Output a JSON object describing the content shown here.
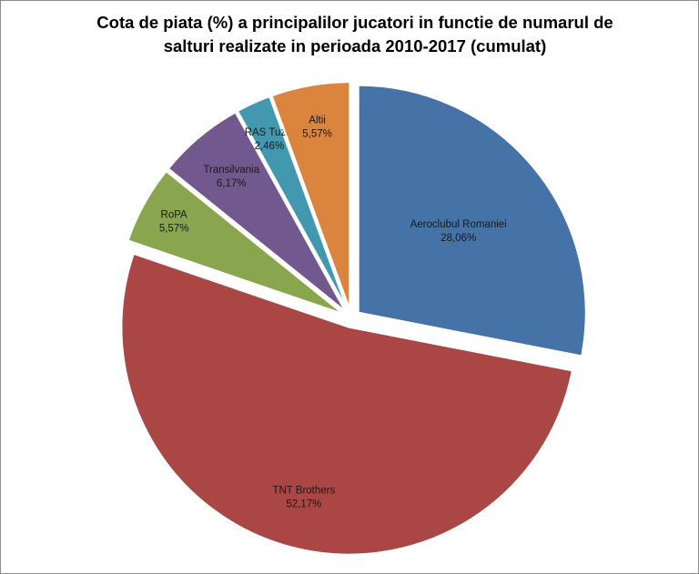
{
  "chart_data": {
    "type": "pie",
    "title_lines": [
      "Cota de piata (%) a principalilor jucatori in functie de numarul de",
      "salturi realizate in perioada 2010-2017 (cumulat)"
    ],
    "slices": [
      {
        "name": "Aeroclubul Romaniei",
        "value": 28.06,
        "value_label": "28,06%",
        "color": "#4572A7",
        "exploded": true
      },
      {
        "name": "TNT Brothers",
        "value": 52.17,
        "value_label": "52,17%",
        "color": "#AA4643",
        "exploded": true
      },
      {
        "name": "RoPA",
        "value": 5.57,
        "value_label": "5,57%",
        "color": "#89A54E",
        "exploded": true
      },
      {
        "name": "Transilvania",
        "value": 6.17,
        "value_label": "6,17%",
        "color": "#71588F",
        "exploded": true
      },
      {
        "name": "RAS Tuzla",
        "value": 2.46,
        "value_label": "2,46%",
        "color": "#4198AF",
        "exploded": true
      },
      {
        "name": "Altii",
        "value": 5.57,
        "value_label": "5,57%",
        "color": "#DB843D",
        "exploded": true
      }
    ],
    "start_angle": "12 o'clock",
    "direction": "clockwise",
    "legend": "none"
  }
}
